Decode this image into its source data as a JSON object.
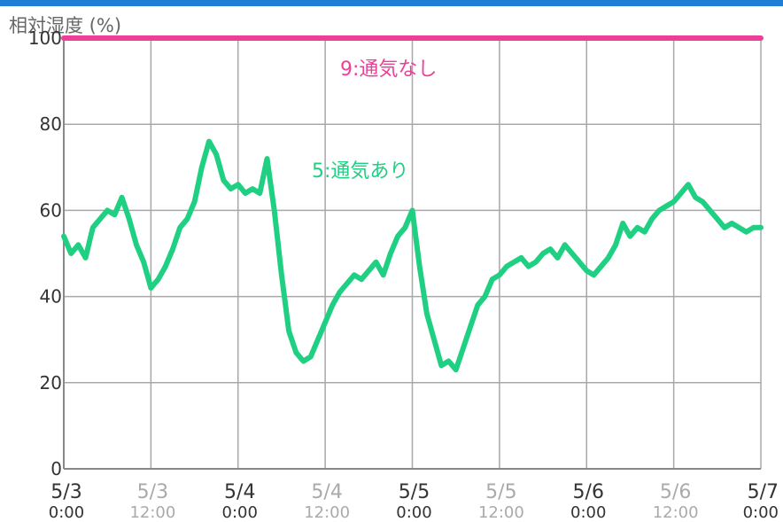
{
  "chart_data": {
    "type": "line",
    "ylabel": "相対湿度 (%)",
    "ylim": [
      0,
      100
    ],
    "yticks": [
      "0",
      "20",
      "40",
      "60",
      "80",
      "100"
    ],
    "xlim": [
      "2020-05-03 00:00",
      "2020-05-07 00:00"
    ],
    "xticks": [
      {
        "date": "5/3",
        "time": "0:00",
        "color": "#333333"
      },
      {
        "date": "5/3",
        "time": "12:00",
        "color": "#aaaaaa"
      },
      {
        "date": "5/4",
        "time": "0:00",
        "color": "#333333"
      },
      {
        "date": "5/4",
        "time": "12:00",
        "color": "#aaaaaa"
      },
      {
        "date": "5/5",
        "time": "0:00",
        "color": "#333333"
      },
      {
        "date": "5/5",
        "time": "12:00",
        "color": "#aaaaaa"
      },
      {
        "date": "5/6",
        "time": "0:00",
        "color": "#333333"
      },
      {
        "date": "5/6",
        "time": "12:00",
        "color": "#aaaaaa"
      },
      {
        "date": "5/7",
        "time": "0:00",
        "color": "#333333"
      }
    ],
    "grid": true,
    "series": [
      {
        "name": "9:通気なし",
        "color": "#ee3f98",
        "x": [
          0,
          3,
          6,
          10,
          12,
          13,
          14,
          15,
          16,
          18,
          20,
          22,
          24,
          26,
          28,
          30,
          32,
          34,
          35,
          36,
          38,
          40,
          42,
          43,
          44,
          46,
          48,
          50,
          54,
          60,
          66,
          72,
          78,
          84,
          90,
          96
        ],
        "values": [
          100,
          100,
          100,
          100,
          100,
          100,
          100,
          100,
          100,
          100,
          100,
          100,
          100,
          100,
          100,
          100,
          100,
          100,
          100,
          100,
          100,
          100,
          100,
          100,
          100,
          100,
          100,
          100,
          100,
          100,
          100,
          100,
          100,
          100,
          100,
          100
        ]
      },
      {
        "name": "5:通気あり",
        "color": "#1fcf82",
        "x": [
          0,
          1,
          2,
          3,
          4,
          5,
          6,
          7,
          8,
          9,
          10,
          11,
          12,
          13,
          14,
          15,
          16,
          17,
          18,
          19,
          20,
          21,
          22,
          23,
          24,
          25,
          26,
          27,
          28,
          29,
          30,
          31,
          32,
          33,
          34,
          35,
          36,
          37,
          38,
          39,
          40,
          41,
          42,
          43,
          44,
          45,
          46,
          47,
          48,
          49,
          50,
          51,
          52,
          53,
          54,
          55,
          56,
          57,
          58,
          59,
          60,
          61,
          62,
          63,
          64,
          65,
          66,
          67,
          68,
          69,
          70,
          71,
          72,
          73,
          74,
          75,
          76,
          77,
          78,
          79,
          80,
          81,
          82,
          83,
          84,
          85,
          86,
          87,
          88,
          89,
          90,
          91,
          92,
          93,
          94,
          95,
          96
        ],
        "values": [
          54,
          50,
          52,
          49,
          56,
          58,
          60,
          59,
          63,
          58,
          52,
          48,
          42,
          44,
          47,
          51,
          56,
          58,
          62,
          70,
          76,
          73,
          67,
          65,
          66,
          64,
          65,
          64,
          72,
          60,
          45,
          32,
          27,
          25,
          26,
          30,
          34,
          38,
          41,
          43,
          45,
          44,
          46,
          48,
          45,
          50,
          54,
          56,
          60,
          47,
          36,
          30,
          24,
          25,
          23,
          28,
          33,
          38,
          40,
          44,
          45,
          47,
          48,
          49,
          47,
          48,
          50,
          51,
          49,
          52,
          50,
          48,
          46,
          45,
          47,
          49,
          52,
          57,
          54,
          56,
          55,
          58,
          60,
          61,
          62,
          64,
          66,
          63,
          62,
          60,
          58,
          56,
          57,
          56,
          55,
          56,
          56
        ]
      }
    ],
    "annotations": [
      {
        "text": "9:通気なし",
        "series": 0
      },
      {
        "text": "5:通気あり",
        "series": 1
      }
    ]
  }
}
